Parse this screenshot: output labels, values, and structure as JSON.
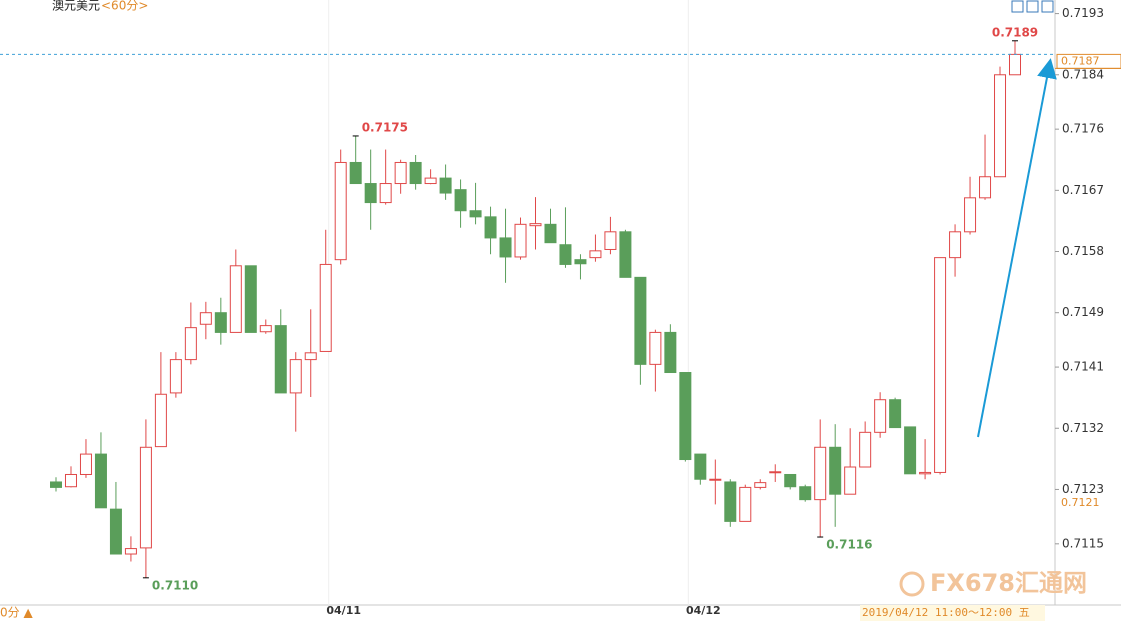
{
  "chart_data": {
    "type": "candlestick",
    "title": "澳元美元",
    "period": "<60分>",
    "period_footer": "0分 ▲",
    "status": "2019/04/12 11:00～12:00 五",
    "watermark": "FX678汇通网",
    "categories": [
      null,
      null,
      null,
      null,
      null,
      null,
      null,
      null,
      null,
      null,
      null,
      null,
      null,
      null,
      null,
      null,
      null,
      null,
      null,
      "04/11",
      null,
      null,
      null,
      null,
      null,
      null,
      null,
      null,
      null,
      null,
      null,
      null,
      null,
      null,
      null,
      null,
      null,
      null,
      null,
      null,
      null,
      null,
      null,
      "04/12",
      null,
      null,
      null,
      null,
      null,
      null,
      null,
      null,
      null,
      null,
      null,
      null,
      null,
      null,
      null,
      null,
      null,
      null,
      null,
      null,
      null
    ],
    "open": [
      0.71241,
      0.71234,
      0.71252,
      0.71282,
      0.71201,
      0.71135,
      0.71144,
      0.71293,
      0.71372,
      0.71421,
      0.71473,
      0.7149,
      0.71461,
      0.71559,
      0.71462,
      0.71471,
      0.71372,
      0.71421,
      0.71433,
      0.71568,
      0.71711,
      0.7168,
      0.71652,
      0.7168,
      0.71711,
      0.7168,
      0.71688,
      0.71671,
      0.7164,
      0.71631,
      0.716,
      0.71572,
      0.71618,
      0.7162,
      0.7159,
      0.71568,
      0.71571,
      0.71583,
      0.71609,
      0.71542,
      0.71414,
      0.71461,
      0.71402,
      0.71282,
      0.71244,
      0.71241,
      0.71183,
      0.71233,
      0.71255,
      0.71252,
      0.71234,
      0.71215,
      0.71292,
      0.71223,
      0.71263,
      0.71314,
      0.71362,
      0.71322,
      0.71253,
      0.71255,
      0.71571,
      0.71609,
      0.71659,
      0.7169,
      0.7184
    ],
    "high": [
      0.71248,
      0.71264,
      0.71304,
      0.71314,
      0.71241,
      0.71161,
      0.71333,
      0.71432,
      0.71432,
      0.71505,
      0.71506,
      0.71512,
      0.71583,
      0.71559,
      0.7148,
      0.71495,
      0.71432,
      0.71495,
      0.71612,
      0.7173,
      0.7175,
      0.7173,
      0.7173,
      0.71715,
      0.71722,
      0.71701,
      0.71708,
      0.71686,
      0.71681,
      0.71646,
      0.71643,
      0.7163,
      0.7166,
      0.71643,
      0.71645,
      0.71576,
      0.71605,
      0.71631,
      0.71612,
      0.71542,
      0.71465,
      0.71473,
      0.71402,
      0.71282,
      0.71274,
      0.71245,
      0.71237,
      0.71245,
      0.71267,
      0.71252,
      0.71237,
      0.71333,
      0.71326,
      0.7132,
      0.7133,
      0.71373,
      0.71365,
      0.71322,
      0.71304,
      0.71571,
      0.7162,
      0.7169,
      0.71752,
      0.71852,
      0.7189
    ],
    "low": [
      0.71227,
      0.71233,
      0.71247,
      0.71203,
      0.71135,
      0.71124,
      0.711,
      0.71293,
      0.71365,
      0.71414,
      0.71451,
      0.71443,
      0.71461,
      0.71461,
      0.71459,
      0.71372,
      0.71315,
      0.71366,
      0.71433,
      0.71561,
      0.7168,
      0.71612,
      0.71649,
      0.71665,
      0.71671,
      0.71679,
      0.71656,
      0.71615,
      0.7162,
      0.71576,
      0.71534,
      0.71568,
      0.71583,
      0.71593,
      0.71556,
      0.71539,
      0.71565,
      0.71576,
      0.71542,
      0.71384,
      0.71374,
      0.71402,
      0.71271,
      0.71237,
      0.71208,
      0.71175,
      0.71183,
      0.7123,
      0.71241,
      0.7123,
      0.71212,
      0.7116,
      0.71175,
      0.71223,
      0.71263,
      0.71306,
      0.71321,
      0.71253,
      0.71245,
      0.71252,
      0.71543,
      0.71605,
      0.71656,
      0.7169,
      0.7184
    ],
    "close": [
      0.71233,
      0.71252,
      0.71282,
      0.71203,
      0.71135,
      0.71143,
      0.71292,
      0.7137,
      0.71421,
      0.71468,
      0.7149,
      0.71461,
      0.71559,
      0.71461,
      0.71471,
      0.71372,
      0.71421,
      0.71431,
      0.71561,
      0.71711,
      0.7168,
      0.71652,
      0.7168,
      0.71711,
      0.7168,
      0.71688,
      0.71666,
      0.7164,
      0.71631,
      0.716,
      0.71572,
      0.7162,
      0.71621,
      0.71593,
      0.71561,
      0.71562,
      0.71581,
      0.71609,
      0.71542,
      0.71414,
      0.71461,
      0.71402,
      0.71274,
      0.71245,
      0.71245,
      0.71183,
      0.71233,
      0.7124,
      0.71256,
      0.71234,
      0.71215,
      0.71292,
      0.71223,
      0.71263,
      0.71314,
      0.71362,
      0.71321,
      0.71253,
      0.71255,
      0.71571,
      0.71609,
      0.71659,
      0.7169,
      0.7184,
      0.7187
    ],
    "up_color": "#e04848",
    "down_color": "#5a9e5a",
    "annotations": [
      {
        "value": 0.711,
        "label": "0.7110",
        "color": "#5a9e5a"
      },
      {
        "value": 0.7175,
        "label": "0.7175",
        "color": "#e04848"
      },
      {
        "value": 0.7116,
        "label": "0.7116",
        "color": "#5a9e5a"
      },
      {
        "value": 0.7189,
        "label": "0.7189",
        "color": "#e04848"
      }
    ],
    "last_price": 0.7187,
    "reference_price": 0.7121,
    "ylim": [
      0.7106,
      0.7195
    ],
    "yticks": [
      0.7193,
      0.7184,
      0.7176,
      0.7167,
      0.7158,
      0.7149,
      0.7141,
      0.7132,
      0.7123,
      0.7115
    ]
  }
}
